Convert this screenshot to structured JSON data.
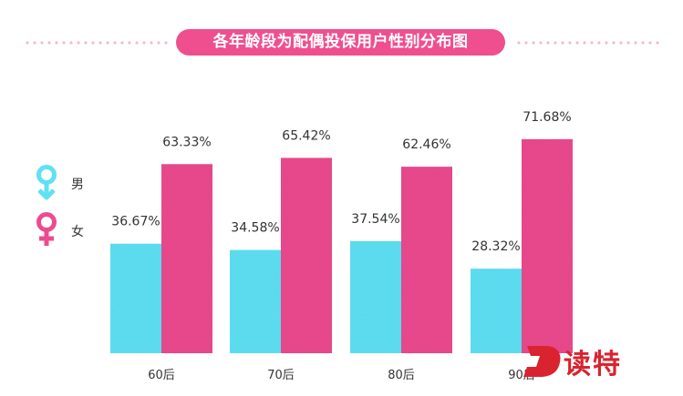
{
  "chart_data": {
    "type": "bar",
    "title": "各年龄段为配偶投保用户性别分布图",
    "categories": [
      "60后",
      "70后",
      "80后",
      "90后"
    ],
    "series": [
      {
        "name": "男",
        "color": "#5fe1f5",
        "values": [
          36.67,
          34.58,
          37.54,
          28.32
        ],
        "labels": [
          "36.67%",
          "34.58%",
          "37.54%",
          "28.32%"
        ]
      },
      {
        "name": "女",
        "color": "#ec4c8f",
        "values": [
          63.33,
          65.42,
          62.46,
          71.68
        ],
        "labels": [
          "63.33%",
          "65.42%",
          "62.46%",
          "71.68%"
        ]
      }
    ],
    "ylim": [
      0,
      100
    ],
    "grid": false,
    "legend": "left"
  },
  "legend": {
    "male_label": "男",
    "male_icon": "male-symbol-icon",
    "female_label": "女",
    "female_icon": "female-symbol-icon"
  },
  "logo": {
    "text": "读特",
    "mark": "D"
  },
  "colors": {
    "title_bg": "#ef4f8f",
    "male": "#5fe1f5",
    "female": "#ec4c8f",
    "logo": "#d9232f"
  }
}
